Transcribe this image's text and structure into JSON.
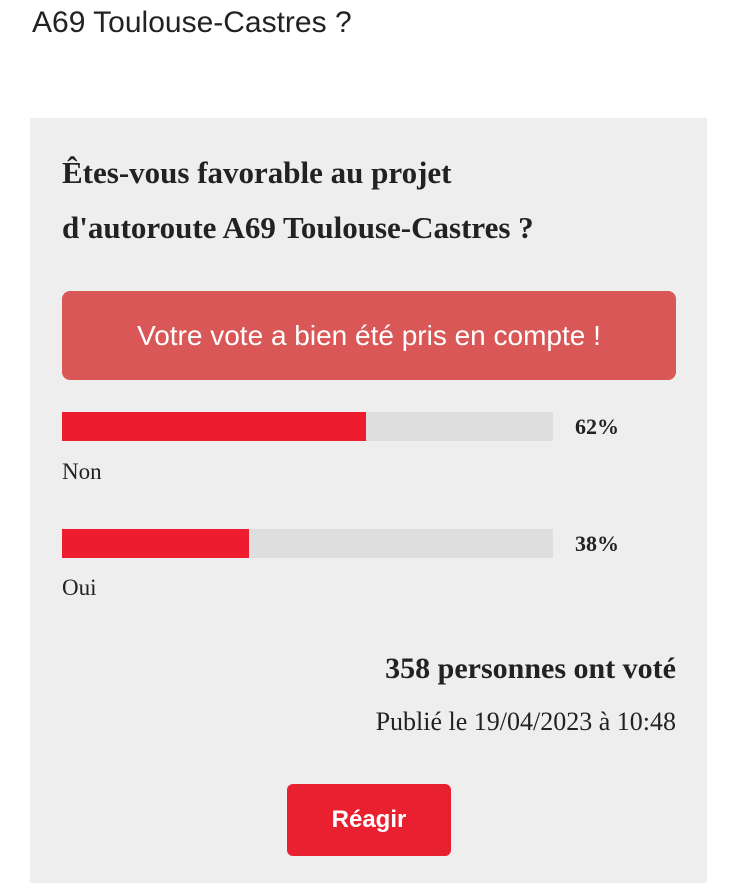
{
  "header": {
    "title": "A69 Toulouse-Castres ?"
  },
  "poll": {
    "question_lines": [
      "Êtes-vous favorable au projet",
      "d'autoroute A69 Toulouse-Castres ?"
    ],
    "confirmation": "Votre vote a bien été pris en compte !",
    "options": [
      {
        "label": "Non",
        "percent": 62,
        "percent_label": "62%"
      },
      {
        "label": "Oui",
        "percent": 38,
        "percent_label": "38%"
      }
    ],
    "voters": "358 personnes ont voté",
    "published": "Publié le 19/04/2023 à 10:48",
    "button": "Réagir"
  }
}
